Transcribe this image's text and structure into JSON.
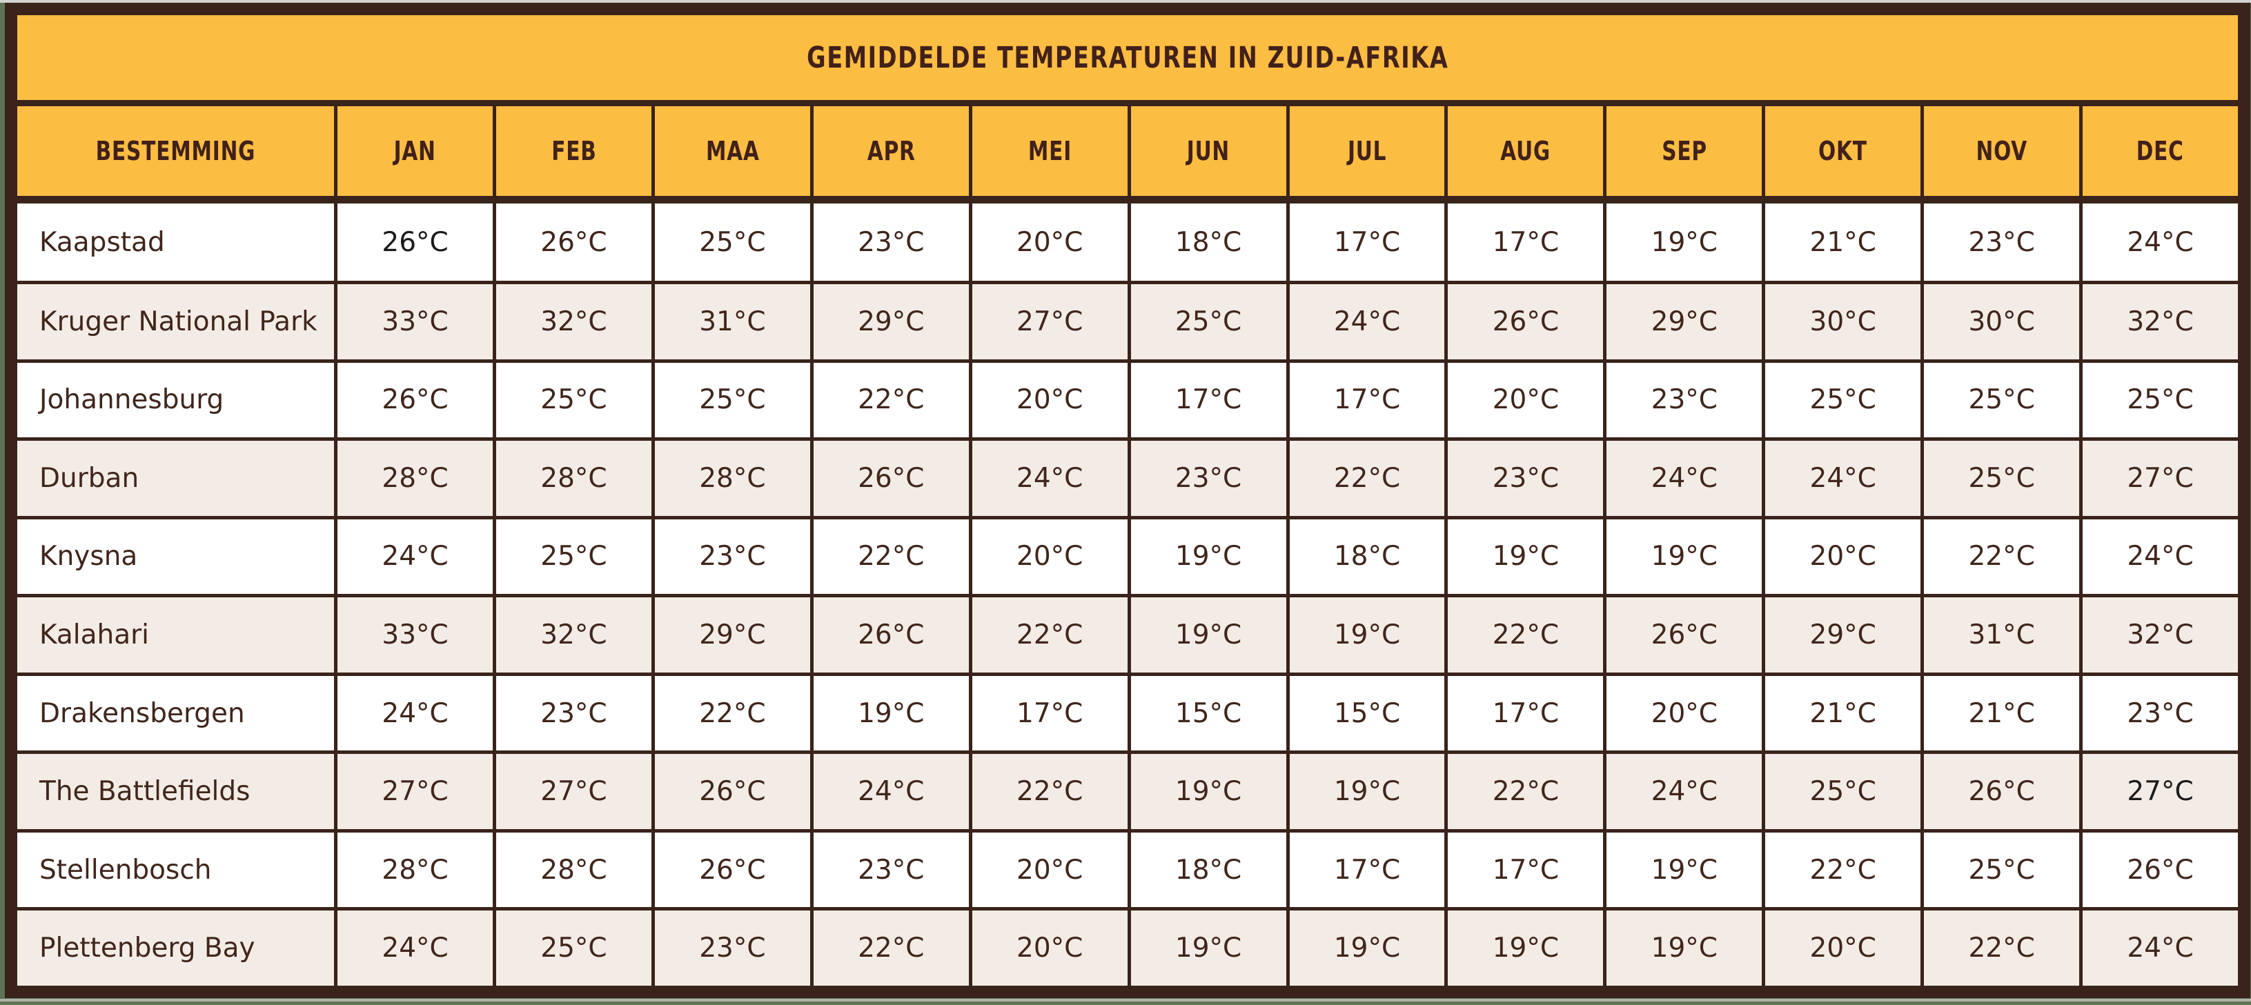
{
  "title": "GEMIDDELDE TEMPERATUREN IN ZUID-AFRIKA",
  "table": {
    "destination_header": "BESTEMMING",
    "month_headers": [
      "JAN",
      "FEB",
      "MAA",
      "APR",
      "MEI",
      "JUN",
      "JUL",
      "AUG",
      "SEP",
      "OKT",
      "NOV",
      "DEC"
    ],
    "rows": [
      {
        "destination": "Kaapstad",
        "temps": [
          "26°C",
          "26°C",
          "25°C",
          "23°C",
          "20°C",
          "18°C",
          "17°C",
          "17°C",
          "19°C",
          "21°C",
          "23°C",
          "24°C"
        ]
      },
      {
        "destination": "Kruger National Park",
        "temps": [
          "33°C",
          "32°C",
          "31°C",
          "29°C",
          "27°C",
          "25°C",
          "24°C",
          "26°C",
          "29°C",
          "30°C",
          "30°C",
          "32°C"
        ]
      },
      {
        "destination": "Johannesburg",
        "temps": [
          "26°C",
          "25°C",
          "25°C",
          "22°C",
          "20°C",
          "17°C",
          "17°C",
          "20°C",
          "23°C",
          "25°C",
          "25°C",
          "25°C"
        ]
      },
      {
        "destination": "Durban",
        "temps": [
          "28°C",
          "28°C",
          "28°C",
          "26°C",
          "24°C",
          "23°C",
          "22°C",
          "23°C",
          "24°C",
          "24°C",
          "25°C",
          "27°C"
        ]
      },
      {
        "destination": "Knysna",
        "temps": [
          "24°C",
          "25°C",
          "23°C",
          "22°C",
          "20°C",
          "19°C",
          "18°C",
          "19°C",
          "19°C",
          "20°C",
          "22°C",
          "24°C"
        ]
      },
      {
        "destination": "Kalahari",
        "temps": [
          "33°C",
          "32°C",
          "29°C",
          "26°C",
          "22°C",
          "19°C",
          "19°C",
          "22°C",
          "26°C",
          "29°C",
          "31°C",
          "32°C"
        ]
      },
      {
        "destination": "Drakensbergen",
        "temps": [
          "24°C",
          "23°C",
          "22°C",
          "19°C",
          "17°C",
          "15°C",
          "15°C",
          "17°C",
          "20°C",
          "21°C",
          "21°C",
          "23°C"
        ]
      },
      {
        "destination": "The Battlefields",
        "temps": [
          "27°C",
          "27°C",
          "26°C",
          "24°C",
          "22°C",
          "19°C",
          "19°C",
          "22°C",
          "24°C",
          "25°C",
          "26°C",
          "27°C"
        ]
      },
      {
        "destination": "Stellenbosch",
        "temps": [
          "28°C",
          "28°C",
          "26°C",
          "23°C",
          "20°C",
          "18°C",
          "17°C",
          "17°C",
          "19°C",
          "22°C",
          "25°C",
          "26°C"
        ]
      },
      {
        "destination": "Plettenberg Bay",
        "temps": [
          "24°C",
          "25°C",
          "23°C",
          "22°C",
          "20°C",
          "19°C",
          "19°C",
          "19°C",
          "19°C",
          "20°C",
          "22°C",
          "24°C"
        ]
      }
    ]
  },
  "emphasized_cells": [
    {
      "row": 0,
      "col": 0
    },
    {
      "row": 7,
      "col": 11
    }
  ],
  "colors": {
    "header_bg": "#FCBD43",
    "border": "#39231A",
    "row_bg": "#FFFFFF",
    "row_alt_bg": "#F3ECE6",
    "text_brown": "#40261C",
    "emphasis_text": "#1B1B1B",
    "page_edge_green": "#5E7356"
  },
  "chart_data": {
    "type": "table",
    "title": "GEMIDDELDE TEMPERATUREN IN ZUID-AFRIKA",
    "unit": "°C",
    "columns": [
      "BESTEMMING",
      "JAN",
      "FEB",
      "MAA",
      "APR",
      "MEI",
      "JUN",
      "JUL",
      "AUG",
      "SEP",
      "OKT",
      "NOV",
      "DEC"
    ],
    "destinations": [
      "Kaapstad",
      "Kruger National Park",
      "Johannesburg",
      "Durban",
      "Knysna",
      "Kalahari",
      "Drakensbergen",
      "The Battlefields",
      "Stellenbosch",
      "Plettenberg Bay"
    ],
    "values_c": [
      [
        26,
        26,
        25,
        23,
        20,
        18,
        17,
        17,
        19,
        21,
        23,
        24
      ],
      [
        33,
        32,
        31,
        29,
        27,
        25,
        24,
        26,
        29,
        30,
        30,
        32
      ],
      [
        26,
        25,
        25,
        22,
        20,
        17,
        17,
        20,
        23,
        25,
        25,
        25
      ],
      [
        28,
        28,
        28,
        26,
        24,
        23,
        22,
        23,
        24,
        24,
        25,
        27
      ],
      [
        24,
        25,
        23,
        22,
        20,
        19,
        18,
        19,
        19,
        20,
        22,
        24
      ],
      [
        33,
        32,
        29,
        26,
        22,
        19,
        19,
        22,
        26,
        29,
        31,
        32
      ],
      [
        24,
        23,
        22,
        19,
        17,
        15,
        15,
        17,
        20,
        21,
        21,
        23
      ],
      [
        27,
        27,
        26,
        24,
        22,
        19,
        19,
        22,
        24,
        25,
        26,
        27
      ],
      [
        28,
        28,
        26,
        23,
        20,
        18,
        17,
        17,
        19,
        22,
        25,
        26
      ],
      [
        24,
        25,
        23,
        22,
        20,
        19,
        19,
        19,
        19,
        20,
        22,
        24
      ]
    ]
  }
}
